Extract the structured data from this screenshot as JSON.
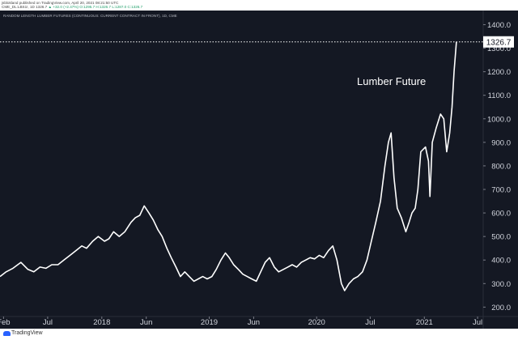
{
  "header": {
    "line1": "jsblokland published on TradingView.com, April 20, 2021 08:21:50 UTC",
    "line2_symbol": "CME_DL:LBS1!, 1D 1326.7",
    "line2_values": "▲ +32.0 (+2.47%) O:1295.7 H:1326.7 L:1287.0 C:1326.7"
  },
  "chart_data": {
    "type": "line",
    "title": "RANDOM LENGTH LUMBER FUTURES (CONTINUOUS: CURRENT CONTRACT IN FRONT), 1D, CME",
    "xlabel": "",
    "ylabel": "",
    "annotation": "Lumber Future",
    "last_value": "1326.7",
    "line_color": "#ffffff",
    "background_color": "#141823",
    "grid": false,
    "ylim": [
      160,
      1460
    ],
    "y_ticks": [
      200,
      300,
      400,
      500,
      600,
      700,
      800,
      900,
      1000,
      1100,
      1200,
      1300,
      1400
    ],
    "y_tick_labels": [
      "200.0",
      "300.0",
      "400.0",
      "500.0",
      "600.0",
      "700.0",
      "800.0",
      "900.0",
      "1000.0",
      "1100.0",
      "1200.0",
      "1300.0",
      "1400.0"
    ],
    "x_domain": [
      "2017-01-20",
      "2021-07-20"
    ],
    "x_ticks": [
      "2017-02-01",
      "2017-07-01",
      "2018-01-01",
      "2018-06-01",
      "2019-01-01",
      "2019-06-01",
      "2020-01-01",
      "2020-07-01",
      "2021-01-01",
      "2021-07-01"
    ],
    "x_tick_labels": [
      "Feb",
      "Jul",
      "2018",
      "Jun",
      "2019",
      "Jun",
      "2020",
      "Jul",
      "2021",
      "Jul"
    ],
    "series": [
      {
        "points": [
          [
            "2017-01-20",
            330
          ],
          [
            "2017-02-10",
            350
          ],
          [
            "2017-03-05",
            365
          ],
          [
            "2017-04-01",
            390
          ],
          [
            "2017-04-25",
            360
          ],
          [
            "2017-05-15",
            350
          ],
          [
            "2017-06-05",
            370
          ],
          [
            "2017-06-25",
            365
          ],
          [
            "2017-07-15",
            380
          ],
          [
            "2017-08-05",
            380
          ],
          [
            "2017-08-25",
            400
          ],
          [
            "2017-09-15",
            420
          ],
          [
            "2017-10-05",
            440
          ],
          [
            "2017-10-25",
            460
          ],
          [
            "2017-11-10",
            450
          ],
          [
            "2017-12-01",
            480
          ],
          [
            "2017-12-20",
            500
          ],
          [
            "2018-01-10",
            480
          ],
          [
            "2018-01-25",
            490
          ],
          [
            "2018-02-10",
            520
          ],
          [
            "2018-03-01",
            500
          ],
          [
            "2018-03-20",
            520
          ],
          [
            "2018-04-10",
            560
          ],
          [
            "2018-04-25",
            580
          ],
          [
            "2018-05-10",
            590
          ],
          [
            "2018-05-25",
            630
          ],
          [
            "2018-06-10",
            600
          ],
          [
            "2018-06-25",
            570
          ],
          [
            "2018-07-10",
            530
          ],
          [
            "2018-07-25",
            500
          ],
          [
            "2018-08-10",
            450
          ],
          [
            "2018-08-25",
            410
          ],
          [
            "2018-09-10",
            370
          ],
          [
            "2018-09-25",
            330
          ],
          [
            "2018-10-10",
            350
          ],
          [
            "2018-10-25",
            330
          ],
          [
            "2018-11-10",
            310
          ],
          [
            "2018-11-25",
            320
          ],
          [
            "2018-12-10",
            330
          ],
          [
            "2018-12-25",
            320
          ],
          [
            "2019-01-10",
            330
          ],
          [
            "2019-01-25",
            360
          ],
          [
            "2019-02-10",
            400
          ],
          [
            "2019-02-25",
            430
          ],
          [
            "2019-03-10",
            410
          ],
          [
            "2019-03-25",
            380
          ],
          [
            "2019-04-10",
            360
          ],
          [
            "2019-04-25",
            340
          ],
          [
            "2019-05-10",
            330
          ],
          [
            "2019-05-25",
            320
          ],
          [
            "2019-06-10",
            310
          ],
          [
            "2019-06-25",
            350
          ],
          [
            "2019-07-10",
            390
          ],
          [
            "2019-07-25",
            410
          ],
          [
            "2019-08-10",
            370
          ],
          [
            "2019-08-25",
            350
          ],
          [
            "2019-09-10",
            360
          ],
          [
            "2019-09-25",
            370
          ],
          [
            "2019-10-10",
            380
          ],
          [
            "2019-10-25",
            370
          ],
          [
            "2019-11-10",
            390
          ],
          [
            "2019-11-25",
            400
          ],
          [
            "2019-12-10",
            410
          ],
          [
            "2019-12-25",
            405
          ],
          [
            "2020-01-10",
            420
          ],
          [
            "2020-01-25",
            410
          ],
          [
            "2020-02-10",
            440
          ],
          [
            "2020-02-25",
            460
          ],
          [
            "2020-03-10",
            400
          ],
          [
            "2020-03-25",
            300
          ],
          [
            "2020-04-05",
            270
          ],
          [
            "2020-04-20",
            300
          ],
          [
            "2020-05-05",
            320
          ],
          [
            "2020-05-20",
            330
          ],
          [
            "2020-06-05",
            350
          ],
          [
            "2020-06-20",
            400
          ],
          [
            "2020-07-05",
            480
          ],
          [
            "2020-07-20",
            560
          ],
          [
            "2020-08-05",
            650
          ],
          [
            "2020-08-20",
            800
          ],
          [
            "2020-09-01",
            900
          ],
          [
            "2020-09-10",
            940
          ],
          [
            "2020-09-20",
            750
          ],
          [
            "2020-10-01",
            620
          ],
          [
            "2020-10-15",
            580
          ],
          [
            "2020-10-30",
            520
          ],
          [
            "2020-11-10",
            560
          ],
          [
            "2020-11-20",
            600
          ],
          [
            "2020-12-01",
            620
          ],
          [
            "2020-12-10",
            700
          ],
          [
            "2020-12-20",
            860
          ],
          [
            "2021-01-05",
            880
          ],
          [
            "2021-01-15",
            820
          ],
          [
            "2021-01-20",
            670
          ],
          [
            "2021-01-28",
            900
          ],
          [
            "2021-02-10",
            960
          ],
          [
            "2021-02-25",
            1020
          ],
          [
            "2021-03-08",
            1000
          ],
          [
            "2021-03-18",
            860
          ],
          [
            "2021-03-28",
            940
          ],
          [
            "2021-04-05",
            1050
          ],
          [
            "2021-04-12",
            1200
          ],
          [
            "2021-04-20",
            1326.7
          ]
        ]
      }
    ]
  },
  "footer": {
    "brand": "TradingView"
  }
}
